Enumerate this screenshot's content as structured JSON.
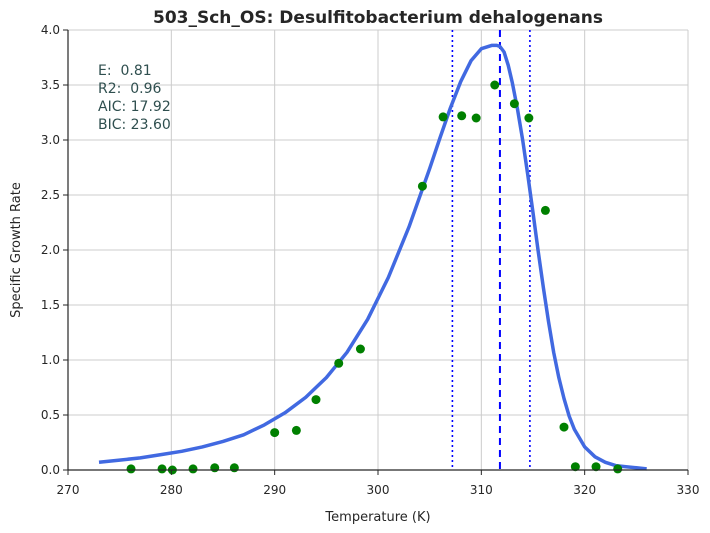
{
  "chart_data": {
    "type": "scatter",
    "title": "503_Sch_OS: Desulfitobacterium dehalogenans",
    "xlabel": "Temperature (K)",
    "ylabel": "Specific Growth Rate",
    "xlim": [
      270,
      330
    ],
    "ylim": [
      0.0,
      4.0
    ],
    "xticks": [
      "270",
      "280",
      "290",
      "300",
      "310",
      "320",
      "330"
    ],
    "yticks": [
      "0.0",
      "0.5",
      "1.0",
      "1.5",
      "2.0",
      "2.5",
      "3.0",
      "3.5",
      "4.0"
    ],
    "grid": true,
    "annotations": [
      "E:  0.81",
      "R2:  0.96",
      "AIC: 17.92",
      "BIC: 23.60"
    ],
    "series": [
      {
        "type": "scatter",
        "color": "#008000",
        "points": [
          {
            "x": 276.1,
            "y": 0.01
          },
          {
            "x": 279.1,
            "y": 0.01
          },
          {
            "x": 280.1,
            "y": 0.0
          },
          {
            "x": 282.1,
            "y": 0.01
          },
          {
            "x": 284.2,
            "y": 0.02
          },
          {
            "x": 286.1,
            "y": 0.02
          },
          {
            "x": 290.0,
            "y": 0.34
          },
          {
            "x": 292.1,
            "y": 0.36
          },
          {
            "x": 294.0,
            "y": 0.64
          },
          {
            "x": 296.2,
            "y": 0.97
          },
          {
            "x": 298.3,
            "y": 1.1
          },
          {
            "x": 304.3,
            "y": 2.58
          },
          {
            "x": 306.3,
            "y": 3.21
          },
          {
            "x": 308.1,
            "y": 3.22
          },
          {
            "x": 309.5,
            "y": 3.2
          },
          {
            "x": 311.3,
            "y": 3.5
          },
          {
            "x": 313.2,
            "y": 3.33
          },
          {
            "x": 314.6,
            "y": 3.2
          },
          {
            "x": 316.2,
            "y": 2.36
          },
          {
            "x": 318.0,
            "y": 0.39
          },
          {
            "x": 319.1,
            "y": 0.03
          },
          {
            "x": 321.1,
            "y": 0.03
          },
          {
            "x": 323.2,
            "y": 0.01
          }
        ]
      },
      {
        "type": "line",
        "color": "#4169e1",
        "x": [
          273,
          275,
          277,
          279,
          281,
          283,
          285,
          287,
          289,
          291,
          293,
          295,
          297,
          299,
          301,
          303,
          305,
          306,
          307,
          308,
          309,
          310,
          311,
          311.5,
          311.8,
          312.2,
          312.6,
          313,
          313.5,
          314,
          314.5,
          315,
          315.5,
          316,
          316.5,
          317,
          317.5,
          318,
          318.5,
          319,
          320,
          321,
          322,
          323,
          324,
          325,
          326
        ],
        "y": [
          0.07,
          0.09,
          0.11,
          0.14,
          0.17,
          0.21,
          0.26,
          0.32,
          0.41,
          0.52,
          0.66,
          0.84,
          1.07,
          1.37,
          1.75,
          2.21,
          2.74,
          3.02,
          3.29,
          3.53,
          3.72,
          3.83,
          3.86,
          3.86,
          3.85,
          3.8,
          3.68,
          3.52,
          3.28,
          3.0,
          2.68,
          2.34,
          1.99,
          1.66,
          1.35,
          1.07,
          0.84,
          0.65,
          0.49,
          0.37,
          0.21,
          0.12,
          0.07,
          0.04,
          0.03,
          0.02,
          0.01
        ]
      }
    ],
    "vlines": [
      {
        "x": 307.2,
        "style": "dotted",
        "color": "#0000ff"
      },
      {
        "x": 311.8,
        "style": "dashed",
        "color": "#0000ff"
      },
      {
        "x": 314.7,
        "style": "dotted",
        "color": "#0000ff"
      }
    ]
  }
}
